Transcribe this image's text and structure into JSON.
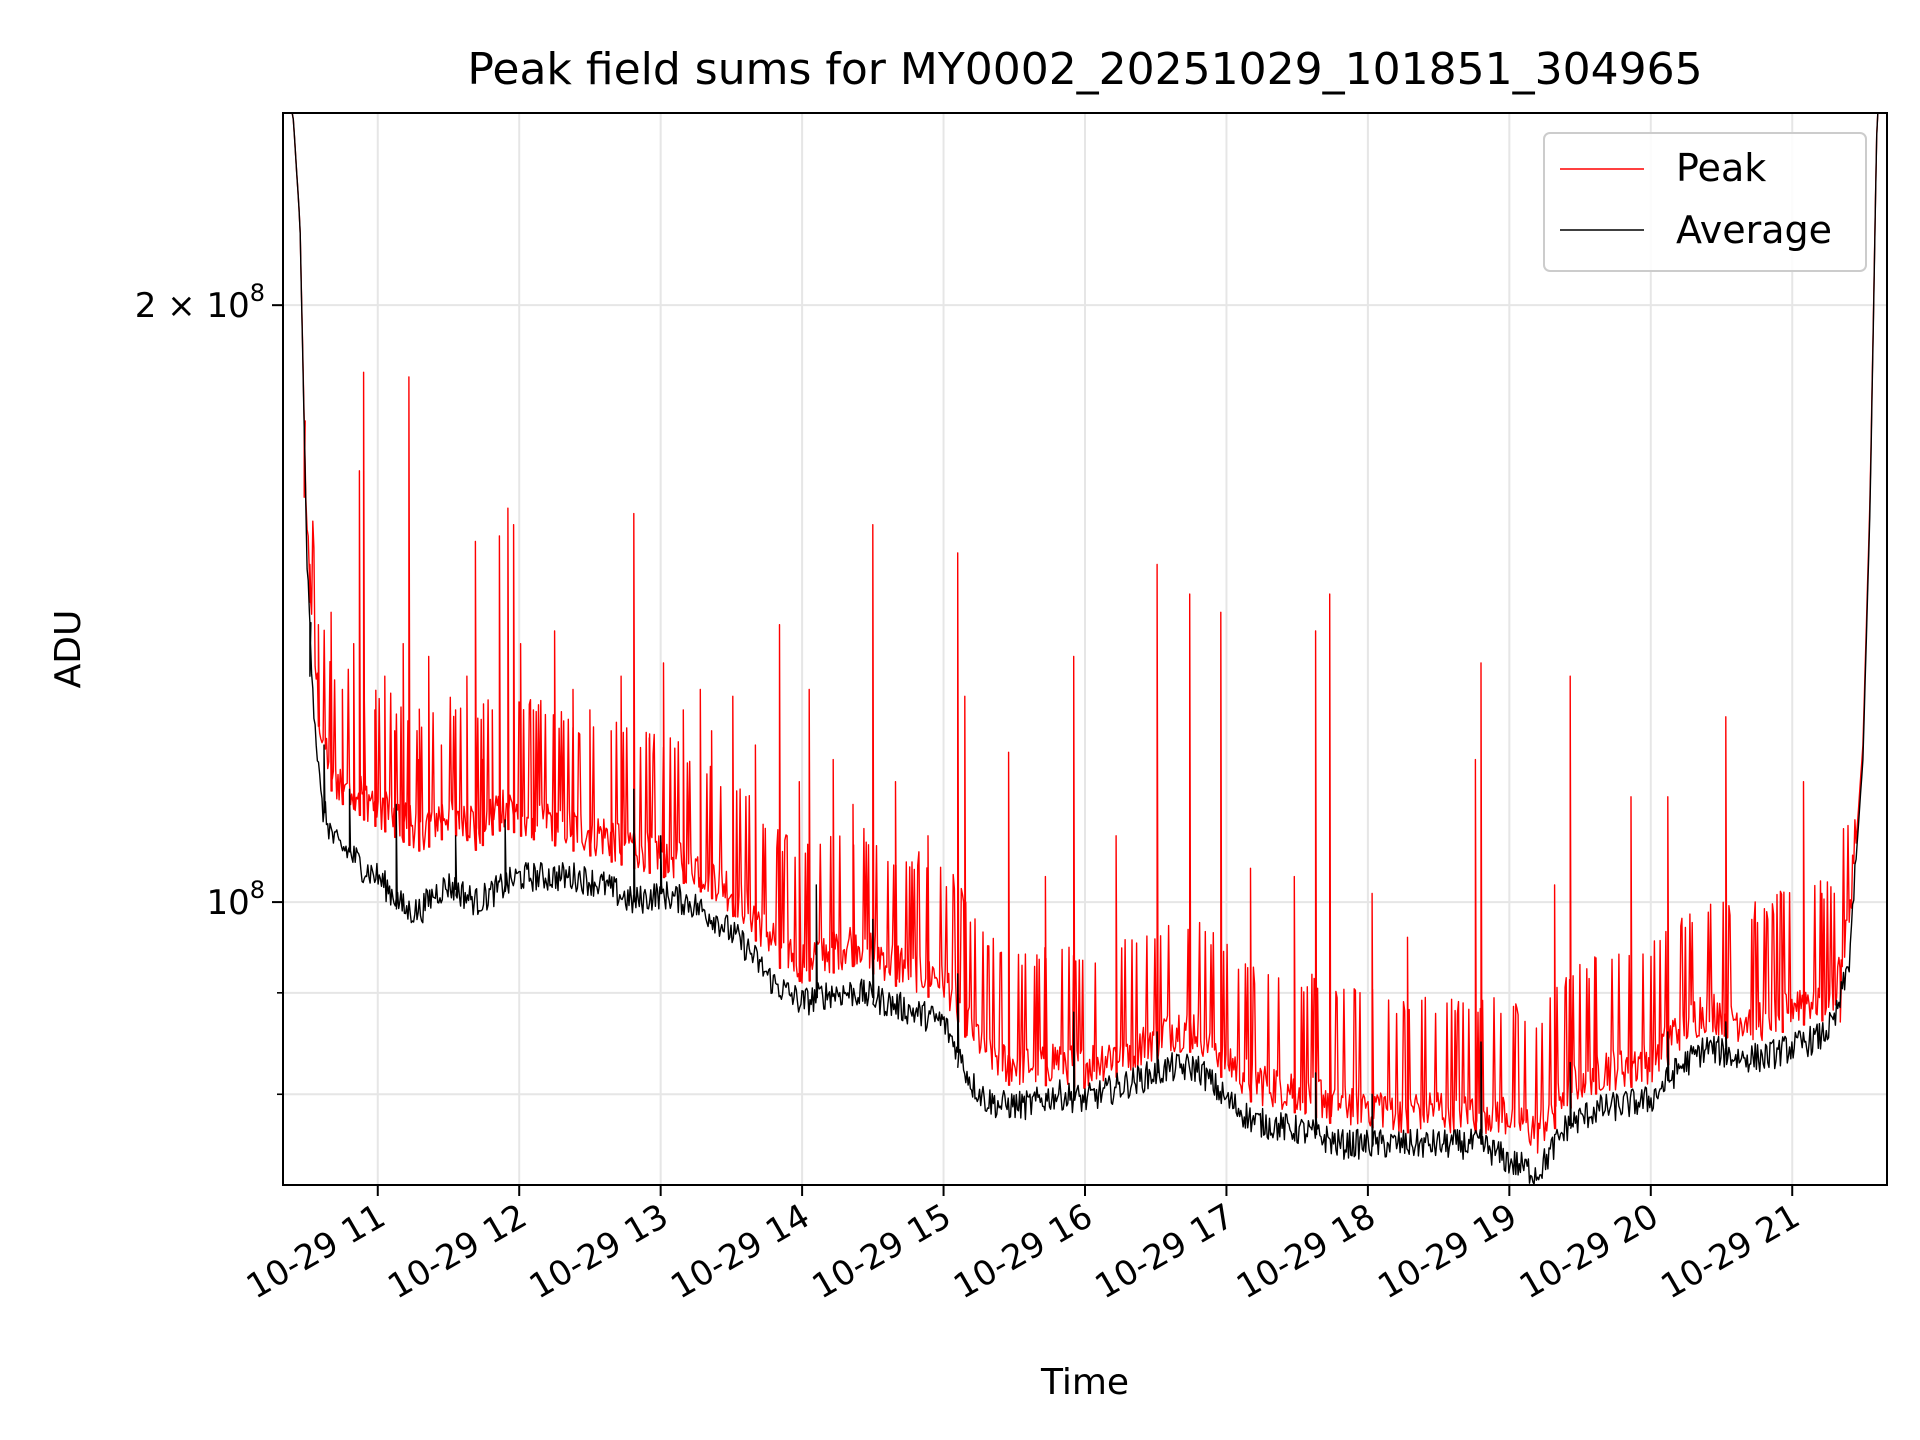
{
  "chart_data": {
    "type": "line",
    "title": "Peak field sums for MY0002_20251029_101851_304965",
    "xlabel": "Time",
    "ylabel": "ADU",
    "yscale": "log",
    "ylim": [
      72000000,
      250000000
    ],
    "xlim": [
      10.33,
      21.67
    ],
    "grid": true,
    "legend_position": "top-right",
    "x_ticks": [
      {
        "value": 11,
        "label": "10-29 11"
      },
      {
        "value": 12,
        "label": "10-29 12"
      },
      {
        "value": 13,
        "label": "10-29 13"
      },
      {
        "value": 14,
        "label": "10-29 14"
      },
      {
        "value": 15,
        "label": "10-29 15"
      },
      {
        "value": 16,
        "label": "10-29 16"
      },
      {
        "value": 17,
        "label": "10-29 17"
      },
      {
        "value": 18,
        "label": "10-29 18"
      },
      {
        "value": 19,
        "label": "10-29 19"
      },
      {
        "value": 20,
        "label": "10-29 20"
      },
      {
        "value": 21,
        "label": "10-29 21"
      }
    ],
    "y_ticks_major": [
      {
        "value": 100000000,
        "base": "10",
        "exp": "8",
        "prefix": ""
      },
      {
        "value": 200000000,
        "base": "10",
        "exp": "8",
        "prefix": "2 × "
      }
    ],
    "y_ticks_minor": [
      80000000,
      90000000
    ],
    "series": [
      {
        "name": "Peak",
        "color": "#ff0000",
        "x": [
          10.33,
          10.4,
          10.45,
          10.5,
          10.55,
          10.6,
          10.7,
          10.8,
          10.9,
          11.0,
          11.1,
          11.2,
          11.3,
          11.4,
          11.5,
          11.6,
          11.7,
          11.8,
          11.9,
          12.0,
          12.2,
          12.4,
          12.6,
          12.8,
          13.0,
          13.2,
          13.4,
          13.6,
          13.8,
          14.0,
          14.2,
          14.4,
          14.6,
          14.8,
          15.0,
          15.1,
          15.2,
          15.3,
          15.4,
          15.6,
          15.8,
          16.0,
          16.2,
          16.4,
          16.6,
          16.8,
          17.0,
          17.2,
          17.4,
          17.6,
          17.8,
          18.0,
          18.2,
          18.4,
          18.6,
          18.8,
          19.0,
          19.2,
          19.4,
          19.6,
          19.8,
          20.0,
          20.2,
          20.4,
          20.6,
          20.8,
          21.0,
          21.2,
          21.3,
          21.4,
          21.5,
          21.55,
          21.6,
          21.67
        ],
        "y": [
          250000000,
          250000000,
          220000000,
          150000000,
          130000000,
          118000000,
          112000000,
          112000000,
          110000000,
          109000000,
          108000000,
          107000000,
          106000000,
          107000000,
          108000000,
          108000000,
          106000000,
          108000000,
          109000000,
          108000000,
          107000000,
          106000000,
          105000000,
          104000000,
          103000000,
          102000000,
          100000000,
          97000000,
          93000000,
          91000000,
          92000000,
          93000000,
          91000000,
          90000000,
          89000000,
          87000000,
          84000000,
          82000000,
          81000000,
          80500000,
          81000000,
          80500000,
          81500000,
          82500000,
          84000000,
          84000000,
          81000000,
          79000000,
          78500000,
          78000000,
          77000000,
          77000000,
          76500000,
          76500000,
          76500000,
          76500000,
          76000000,
          74500000,
          78500000,
          80000000,
          80500000,
          81000000,
          84000000,
          86000000,
          85000000,
          85000000,
          86500000,
          87000000,
          88000000,
          95000000,
          120000000,
          160000000,
          250000000,
          250000000
        ],
        "spikes": [
          [
            10.48,
            160000000
          ],
          [
            10.52,
            148000000
          ],
          [
            10.58,
            138000000
          ],
          [
            10.67,
            140000000
          ],
          [
            10.75,
            128000000
          ],
          [
            10.83,
            135000000
          ],
          [
            10.87,
            165000000
          ],
          [
            10.9,
            185000000
          ],
          [
            10.98,
            125000000
          ],
          [
            11.05,
            130000000
          ],
          [
            11.12,
            122000000
          ],
          [
            11.18,
            135000000
          ],
          [
            11.22,
            184000000
          ],
          [
            11.29,
            118000000
          ],
          [
            11.36,
            133000000
          ],
          [
            11.45,
            120000000
          ],
          [
            11.55,
            125000000
          ],
          [
            11.63,
            130000000
          ],
          [
            11.69,
            152000000
          ],
          [
            11.74,
            118000000
          ],
          [
            11.81,
            125000000
          ],
          [
            11.86,
            153000000
          ],
          [
            11.92,
            158000000
          ],
          [
            11.96,
            155000000
          ],
          [
            12.01,
            135000000
          ],
          [
            12.1,
            125000000
          ],
          [
            12.25,
            137000000
          ],
          [
            12.38,
            128000000
          ],
          [
            12.5,
            125000000
          ],
          [
            12.65,
            122000000
          ],
          [
            12.72,
            130000000
          ],
          [
            12.81,
            157000000
          ],
          [
            12.92,
            121000000
          ],
          [
            13.02,
            132000000
          ],
          [
            13.16,
            125000000
          ],
          [
            13.28,
            128000000
          ],
          [
            13.36,
            122000000
          ],
          [
            13.51,
            127000000
          ],
          [
            13.67,
            120000000
          ],
          [
            13.84,
            138000000
          ],
          [
            13.98,
            115000000
          ],
          [
            14.05,
            128000000
          ],
          [
            14.22,
            118000000
          ],
          [
            14.36,
            112000000
          ],
          [
            14.5,
            155000000
          ],
          [
            14.66,
            115000000
          ],
          [
            14.89,
            108000000
          ],
          [
            15.1,
            150000000
          ],
          [
            15.15,
            127000000
          ],
          [
            15.46,
            119000000
          ],
          [
            15.72,
            103000000
          ],
          [
            15.92,
            133000000
          ],
          [
            16.22,
            108000000
          ],
          [
            16.51,
            148000000
          ],
          [
            16.74,
            143000000
          ],
          [
            16.96,
            140000000
          ],
          [
            17.17,
            104000000
          ],
          [
            17.48,
            103000000
          ],
          [
            17.63,
            137000000
          ],
          [
            17.73,
            143000000
          ],
          [
            18.03,
            101000000
          ],
          [
            18.28,
            96000000
          ],
          [
            18.76,
            118000000
          ],
          [
            18.8,
            132000000
          ],
          [
            19.32,
            102000000
          ],
          [
            19.43,
            130000000
          ],
          [
            19.61,
            88000000
          ],
          [
            19.86,
            113000000
          ],
          [
            20.12,
            113000000
          ],
          [
            20.53,
            124000000
          ],
          [
            20.93,
            95000000
          ],
          [
            21.08,
            115000000
          ],
          [
            21.21,
            101000000
          ],
          [
            21.34,
            87000000
          ]
        ]
      },
      {
        "name": "Average",
        "color": "#000000",
        "x": [
          10.33,
          10.4,
          10.45,
          10.5,
          10.55,
          10.6,
          10.7,
          10.8,
          10.9,
          11.0,
          11.1,
          11.2,
          11.3,
          11.4,
          11.5,
          11.6,
          11.7,
          11.8,
          11.9,
          12.0,
          12.2,
          12.4,
          12.6,
          12.8,
          13.0,
          13.2,
          13.4,
          13.6,
          13.8,
          14.0,
          14.2,
          14.4,
          14.6,
          14.8,
          15.0,
          15.1,
          15.2,
          15.3,
          15.4,
          15.6,
          15.8,
          16.0,
          16.2,
          16.4,
          16.6,
          16.8,
          17.0,
          17.2,
          17.4,
          17.6,
          17.8,
          18.0,
          18.2,
          18.4,
          18.6,
          18.8,
          19.0,
          19.2,
          19.4,
          19.6,
          19.8,
          20.0,
          20.2,
          20.4,
          20.6,
          20.8,
          21.0,
          21.2,
          21.3,
          21.4,
          21.5,
          21.55,
          21.6,
          21.67
        ],
        "y": [
          250000000,
          250000000,
          220000000,
          148000000,
          125000000,
          112000000,
          107000000,
          106000000,
          104000000,
          103000000,
          101000000,
          99000000,
          99000000,
          101000000,
          102000000,
          101000000,
          100000000,
          101000000,
          102000000,
          103000000,
          103000000,
          103000000,
          102000000,
          100000000,
          101000000,
          100000000,
          98000000,
          95000000,
          91000000,
          89000000,
          90000000,
          90000000,
          89000000,
          88000000,
          87000000,
          84000000,
          81000000,
          79500000,
          79000000,
          79000000,
          80000000,
          79500000,
          80500000,
          81500000,
          82500000,
          82500000,
          79500000,
          77500000,
          77000000,
          76500000,
          75500000,
          75500000,
          75500000,
          75500000,
          75500000,
          75500000,
          74000000,
          73000000,
          77000000,
          78500000,
          79000000,
          79500000,
          82500000,
          84500000,
          83500000,
          83500000,
          84500000,
          85500000,
          87000000,
          93000000,
          118000000,
          158000000,
          250000000,
          250000000
        ],
        "spikes": [
          [
            10.52,
            130000000
          ],
          [
            10.62,
            120000000
          ],
          [
            10.8,
            114000000
          ],
          [
            11.13,
            112000000
          ],
          [
            11.55,
            108000000
          ],
          [
            11.9,
            110000000
          ],
          [
            12.81,
            114000000
          ],
          [
            13.0,
            108000000
          ],
          [
            14.1,
            102000000
          ],
          [
            14.5,
            98000000
          ],
          [
            15.1,
            92000000
          ],
          [
            15.92,
            88000000
          ],
          [
            16.51,
            86000000
          ],
          [
            17.63,
            82000000
          ],
          [
            18.03,
            80000000
          ],
          [
            18.8,
            85000000
          ],
          [
            19.43,
            83000000
          ],
          [
            20.12,
            86000000
          ],
          [
            20.53,
            87000000
          ]
        ]
      }
    ]
  }
}
